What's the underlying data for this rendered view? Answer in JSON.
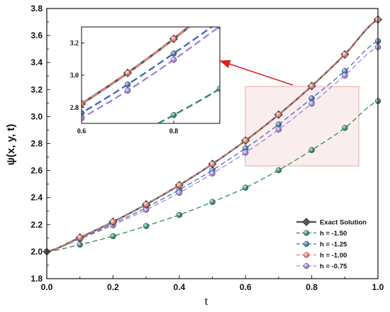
{
  "chart_data": {
    "type": "line",
    "title": "",
    "xlabel": "t",
    "ylabel": "ψ(x, y, t)",
    "xlim": [
      0.0,
      1.0
    ],
    "ylim": [
      1.8,
      3.8
    ],
    "x_ticks": [
      "0.0",
      "0.2",
      "0.4",
      "0.6",
      "0.8",
      "1.0"
    ],
    "y_ticks": [
      "1.8",
      "2.0",
      "2.2",
      "2.4",
      "2.6",
      "2.8",
      "3.0",
      "3.2",
      "3.4",
      "3.6",
      "3.8"
    ],
    "x": [
      0.0,
      0.1,
      0.2,
      0.3,
      0.4,
      0.5,
      0.6,
      0.7,
      0.8,
      0.9,
      1.0
    ],
    "series": [
      {
        "name": "Exact Solution",
        "color": "#595959",
        "marker": "diamond",
        "dash": false,
        "values": [
          2.0,
          2.105,
          2.221,
          2.35,
          2.492,
          2.649,
          2.822,
          3.014,
          3.226,
          3.46,
          3.718
        ]
      },
      {
        "name": "h = -1.50",
        "color": "#2e8b5f",
        "marker": "circle",
        "dash": true,
        "values": [
          2.0,
          2.052,
          2.115,
          2.19,
          2.272,
          2.368,
          2.474,
          2.603,
          2.752,
          2.916,
          3.115
        ]
      },
      {
        "name": "h = -1.25",
        "color": "#3a6fb8",
        "marker": "circle",
        "dash": true,
        "values": [
          2.0,
          2.098,
          2.206,
          2.326,
          2.458,
          2.604,
          2.765,
          2.942,
          3.135,
          3.337,
          3.558
        ]
      },
      {
        "name": "h = -1.00",
        "color": "#f08070",
        "marker": "circle",
        "dash": true,
        "values": [
          2.0,
          2.105,
          2.221,
          2.35,
          2.492,
          2.649,
          2.822,
          3.014,
          3.226,
          3.46,
          3.718
        ]
      },
      {
        "name": "h = -0.75",
        "color": "#a680e6",
        "marker": "circle",
        "dash": true,
        "values": [
          2.0,
          2.093,
          2.195,
          2.31,
          2.436,
          2.579,
          2.733,
          2.904,
          3.096,
          3.304,
          3.514
        ]
      }
    ],
    "inset": {
      "xlim": [
        0.6,
        0.9
      ],
      "ylim": [
        2.7,
        3.3
      ],
      "x_ticks": [
        "0.6",
        "0.8"
      ],
      "y_ticks": [
        "2.8",
        "3.0",
        "3.2"
      ]
    },
    "legend_position": "bottom-right",
    "grid": false
  }
}
